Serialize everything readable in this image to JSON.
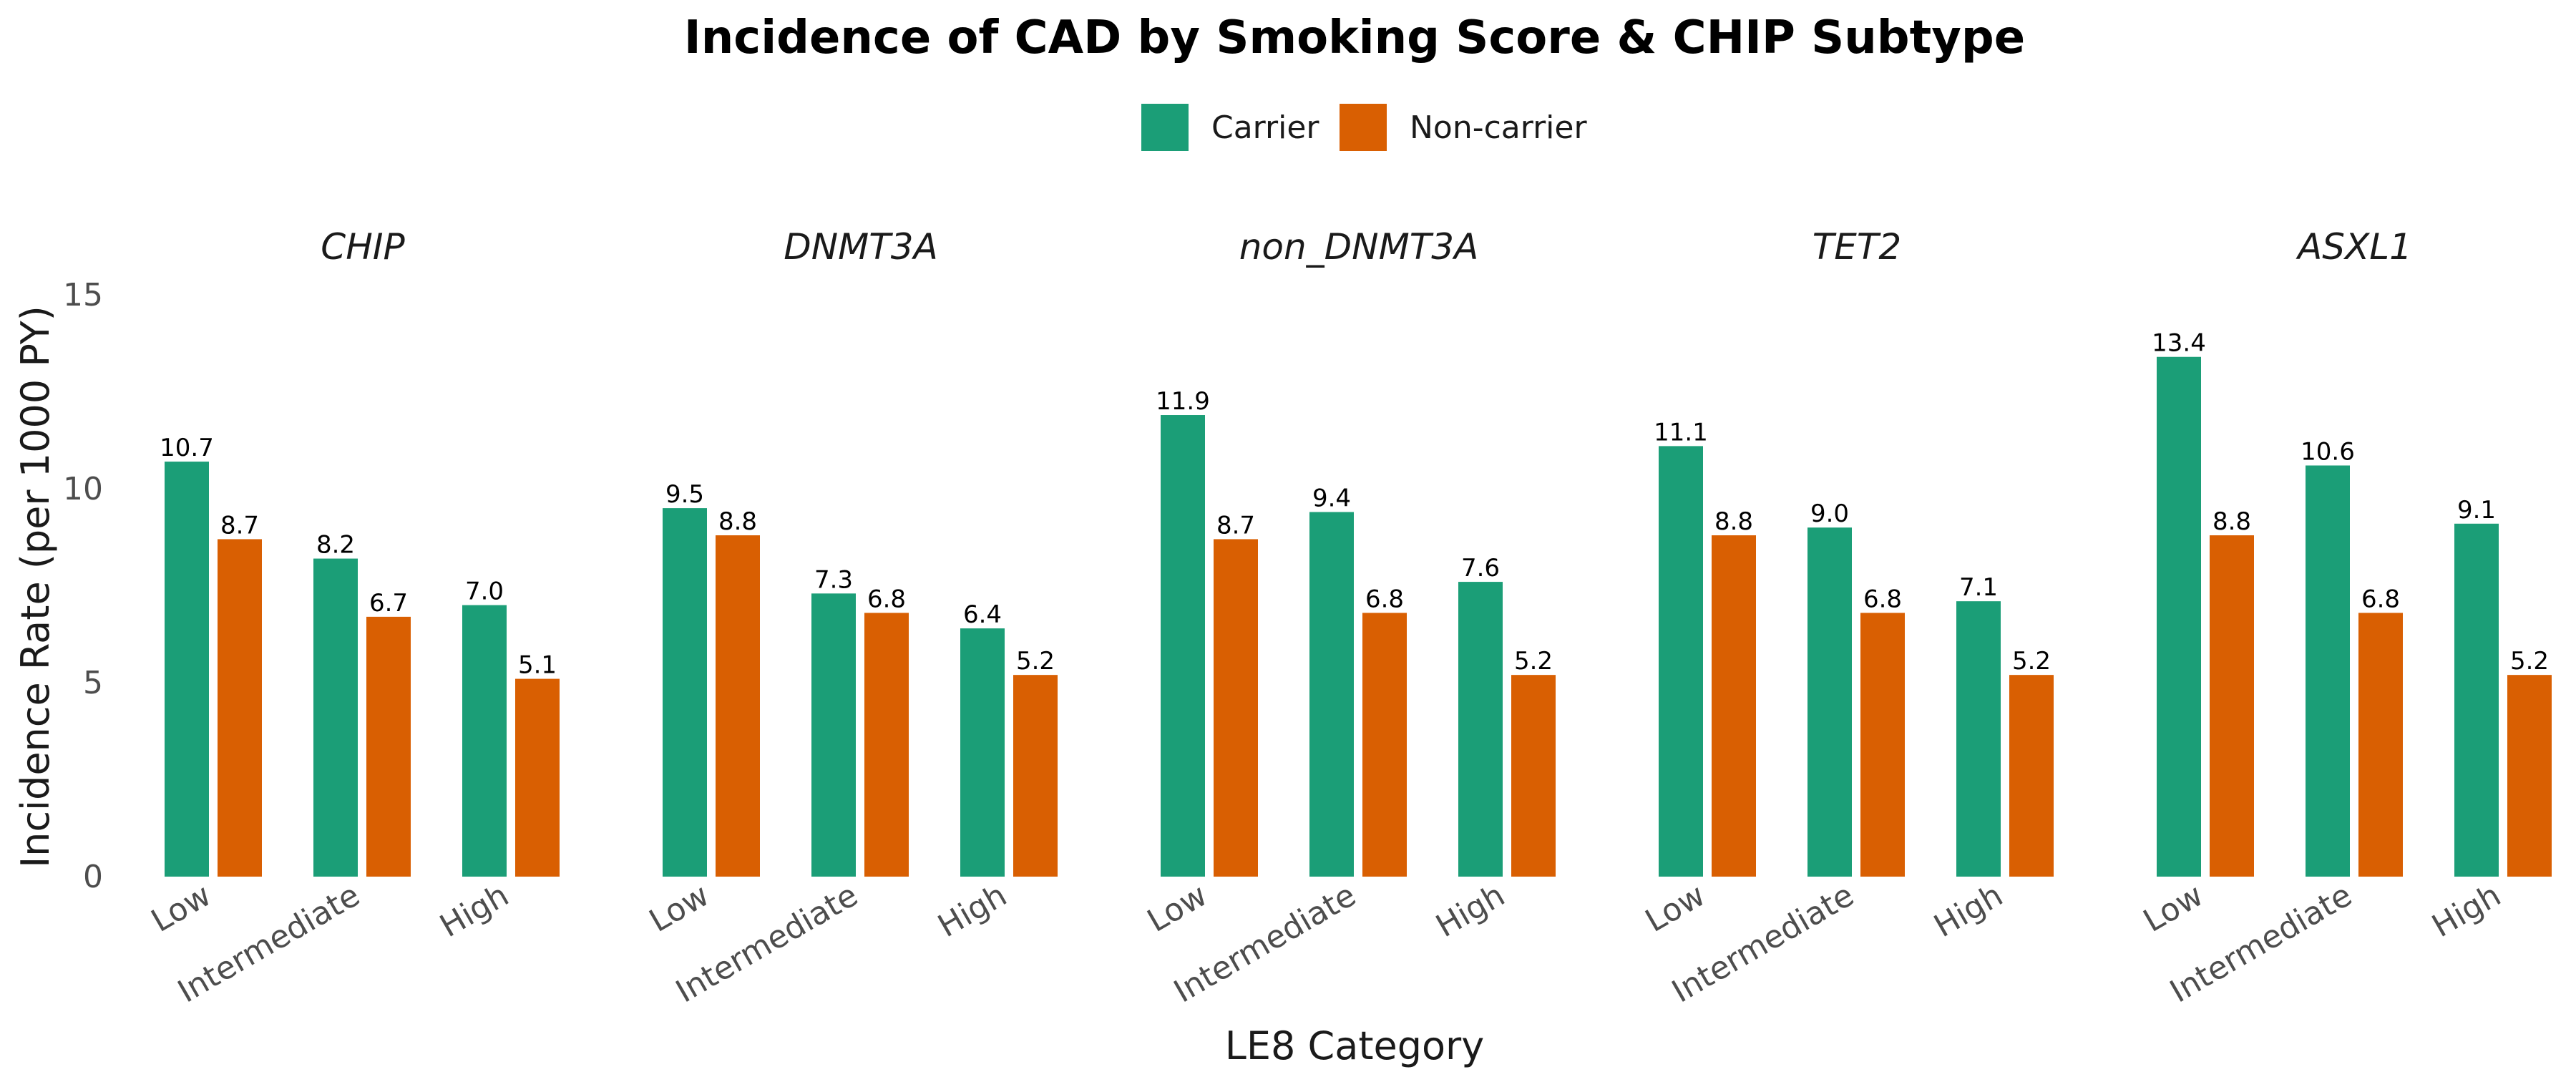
{
  "chart_data": {
    "type": "bar",
    "title": "Incidence of CAD by Smoking Score & CHIP Subtype",
    "xlabel": "LE8 Category",
    "ylabel": "Incidence Rate (per 1000 PY)",
    "ylim": [
      0,
      15
    ],
    "yticks": [
      "0",
      "5",
      "10",
      "15"
    ],
    "ytick_values": [
      0,
      5,
      10,
      15
    ],
    "grid": false,
    "legend_position": "top",
    "categories": [
      "Low",
      "Intermediate",
      "High"
    ],
    "series_meta": [
      {
        "name": "Carrier",
        "color": "#1b9e77"
      },
      {
        "name": "Non-carrier",
        "color": "#d95f02"
      }
    ],
    "facets": [
      {
        "label": "CHIP",
        "series": [
          {
            "name": "Carrier",
            "values": [
              10.7,
              8.2,
              7.0
            ],
            "labels": [
              "10.7",
              "8.2",
              "7.0"
            ]
          },
          {
            "name": "Non-carrier",
            "values": [
              8.7,
              6.7,
              5.1
            ],
            "labels": [
              "8.7",
              "6.7",
              "5.1"
            ]
          }
        ]
      },
      {
        "label": "DNMT3A",
        "series": [
          {
            "name": "Carrier",
            "values": [
              9.5,
              7.3,
              6.4
            ],
            "labels": [
              "9.5",
              "7.3",
              "6.4"
            ]
          },
          {
            "name": "Non-carrier",
            "values": [
              8.8,
              6.8,
              5.2
            ],
            "labels": [
              "8.8",
              "6.8",
              "5.2"
            ]
          }
        ]
      },
      {
        "label": "non_DNMT3A",
        "series": [
          {
            "name": "Carrier",
            "values": [
              11.9,
              9.4,
              7.6
            ],
            "labels": [
              "11.9",
              "9.4",
              "7.6"
            ]
          },
          {
            "name": "Non-carrier",
            "values": [
              8.7,
              6.8,
              5.2
            ],
            "labels": [
              "8.7",
              "6.8",
              "5.2"
            ]
          }
        ]
      },
      {
        "label": "TET2",
        "series": [
          {
            "name": "Carrier",
            "values": [
              11.1,
              9.0,
              7.1
            ],
            "labels": [
              "11.1",
              "9.0",
              "7.1"
            ]
          },
          {
            "name": "Non-carrier",
            "values": [
              8.8,
              6.8,
              5.2
            ],
            "labels": [
              "8.8",
              "6.8",
              "5.2"
            ]
          }
        ]
      },
      {
        "label": "ASXL1",
        "series": [
          {
            "name": "Carrier",
            "values": [
              13.4,
              10.6,
              9.1
            ],
            "labels": [
              "13.4",
              "10.6",
              "9.1"
            ]
          },
          {
            "name": "Non-carrier",
            "values": [
              8.8,
              6.8,
              5.2
            ],
            "labels": [
              "8.8",
              "6.8",
              "5.2"
            ]
          }
        ]
      }
    ]
  }
}
